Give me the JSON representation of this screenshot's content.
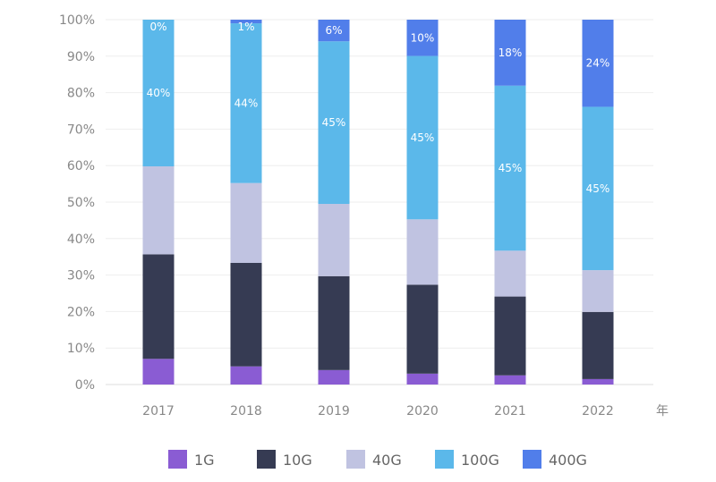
{
  "chart_data": {
    "type": "bar",
    "stacked": true,
    "categories": [
      "2017",
      "2018",
      "2019",
      "2020",
      "2021",
      "2022"
    ],
    "xunit": "年",
    "ylim": [
      0,
      100
    ],
    "yticks": [
      "0%",
      "10%",
      "20%",
      "30%",
      "40%",
      "50%",
      "60%",
      "70%",
      "80%",
      "90%",
      "100%"
    ],
    "grid": true,
    "legend_position": "bottom",
    "series": [
      {
        "name": "1G",
        "color": "#8a5cd3",
        "values": [
          7,
          5,
          4,
          3,
          2.5,
          1.5
        ]
      },
      {
        "name": "10G",
        "color": "#363b53",
        "values": [
          28.5,
          28.5,
          26,
          24.5,
          21.5,
          18.5
        ]
      },
      {
        "name": "40G",
        "color": "#c0c3e1",
        "values": [
          24,
          22,
          20,
          18,
          12.5,
          11.5
        ]
      },
      {
        "name": "100G",
        "color": "#5bb8ea",
        "values": [
          40,
          44,
          45,
          45,
          45,
          45
        ],
        "labels": [
          "40%",
          "44%",
          "45%",
          "45%",
          "45%",
          "45%"
        ]
      },
      {
        "name": "400G",
        "color": "#517eea",
        "values": [
          0,
          1,
          6,
          10,
          18,
          24
        ],
        "labels": [
          "0%",
          "1%",
          "6%",
          "10%",
          "18%",
          "24%"
        ]
      }
    ]
  }
}
